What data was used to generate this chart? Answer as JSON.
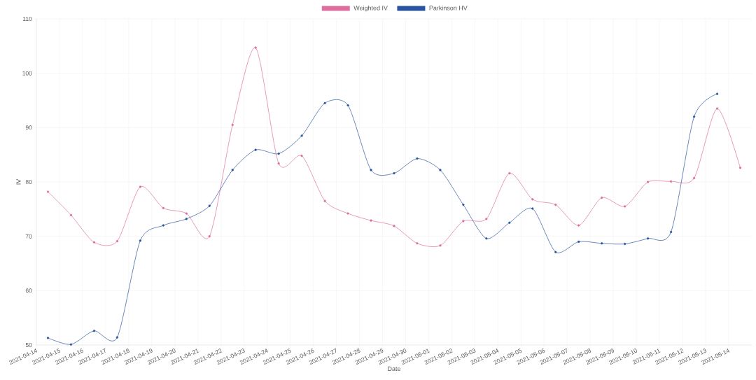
{
  "chart_data": {
    "type": "line",
    "xlabel": "Date",
    "ylabel": "IV",
    "x": [
      "2021-04-14T12:00",
      "2021-04-15T12:00",
      "2021-04-16T12:00",
      "2021-04-17T12:00",
      "2021-04-18T12:00",
      "2021-04-19T12:00",
      "2021-04-20T12:00",
      "2021-04-21T12:00",
      "2021-04-22T12:00",
      "2021-04-23T12:00",
      "2021-04-24T12:00",
      "2021-04-25T12:00",
      "2021-04-26T12:00",
      "2021-04-27T12:00",
      "2021-04-28T12:00",
      "2021-04-29T12:00",
      "2021-04-30T12:00",
      "2021-05-01T12:00",
      "2021-05-02T12:00",
      "2021-05-03T12:00",
      "2021-05-04T12:00",
      "2021-05-05T12:00",
      "2021-05-06T12:00",
      "2021-05-07T12:00",
      "2021-05-08T12:00",
      "2021-05-09T12:00",
      "2021-05-10T12:00",
      "2021-05-11T12:00",
      "2021-05-12T12:00",
      "2021-05-13T12:00",
      "2021-05-14T12:00"
    ],
    "series": [
      {
        "name": "Weighted IV",
        "color": "#dd6fa0",
        "values": [
          78.2,
          73.9,
          68.9,
          69.1,
          79.1,
          75.2,
          74.2,
          70.0,
          90.5,
          104.7,
          83.4,
          84.8,
          76.5,
          74.2,
          72.9,
          71.9,
          68.7,
          68.3,
          72.8,
          73.2,
          81.6,
          76.8,
          75.8,
          72.0,
          77.1,
          75.5,
          80.0,
          80.1,
          80.7,
          93.5,
          82.6
        ]
      },
      {
        "name": "Parkinson HV",
        "color": "#2a54a0",
        "values": [
          51.3,
          50.1,
          52.6,
          51.4,
          69.2,
          72.0,
          73.2,
          75.6,
          82.2,
          85.9,
          85.2,
          88.5,
          94.5,
          94.1,
          82.2,
          81.6,
          84.3,
          82.2,
          75.8,
          69.6,
          72.5,
          75.1,
          67.1,
          69.0,
          68.7,
          68.6,
          69.6,
          70.8,
          92.0,
          96.2,
          null
        ]
      }
    ],
    "xlim": [
      "2021-04-14",
      "2021-05-15"
    ],
    "xticks": [
      "2021-04-14",
      "2021-04-15",
      "2021-04-16",
      "2021-04-17",
      "2021-04-18",
      "2021-04-19",
      "2021-04-20",
      "2021-04-21",
      "2021-04-22",
      "2021-04-23",
      "2021-04-24",
      "2021-04-25",
      "2021-04-26",
      "2021-04-27",
      "2021-04-28",
      "2021-04-29",
      "2021-04-30",
      "2021-05-01",
      "2021-05-02",
      "2021-05-03",
      "2021-05-04",
      "2021-05-05",
      "2021-05-06",
      "2021-05-07",
      "2021-05-08",
      "2021-05-09",
      "2021-05-10",
      "2021-05-11",
      "2021-05-12",
      "2021-05-13",
      "2021-05-14"
    ],
    "ylim": [
      50,
      110
    ],
    "yticks": [
      50,
      60,
      70,
      80,
      90,
      100,
      110
    ],
    "grid": true,
    "legend": "top",
    "marker": "circle",
    "line_style": "solid"
  }
}
